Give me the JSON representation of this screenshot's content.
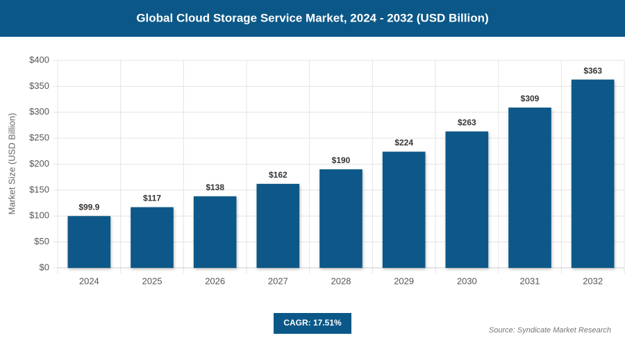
{
  "chart_data": {
    "type": "bar",
    "title": "Global Cloud Storage Service Market, 2024 - 2032 (USD Billion)",
    "y_label": "Market Size (USD Billion)",
    "categories": [
      "2024",
      "2025",
      "2026",
      "2027",
      "2028",
      "2029",
      "2030",
      "2031",
      "2032"
    ],
    "values": [
      99.9,
      117,
      138,
      162,
      190,
      224,
      263,
      309,
      363
    ],
    "value_labels": [
      "$99.9",
      "$117",
      "$138",
      "$162",
      "$190",
      "$224",
      "$263",
      "$309",
      "$363"
    ],
    "color": "#0b5888",
    "ylim": [
      0,
      400
    ],
    "yticks": [
      {
        "value": 0,
        "label": "$0"
      },
      {
        "value": 50,
        "label": "$50"
      },
      {
        "value": 100,
        "label": "$100"
      },
      {
        "value": 150,
        "label": "$150"
      },
      {
        "value": 200,
        "label": "$200"
      },
      {
        "value": 250,
        "label": "$250"
      },
      {
        "value": 300,
        "label": "$300"
      },
      {
        "value": 350,
        "label": "$350"
      },
      {
        "value": 400,
        "label": "$400"
      }
    ],
    "grid": true,
    "cagr": "CAGR: 17.51%",
    "source": "Source: Syndicate Market Research"
  }
}
